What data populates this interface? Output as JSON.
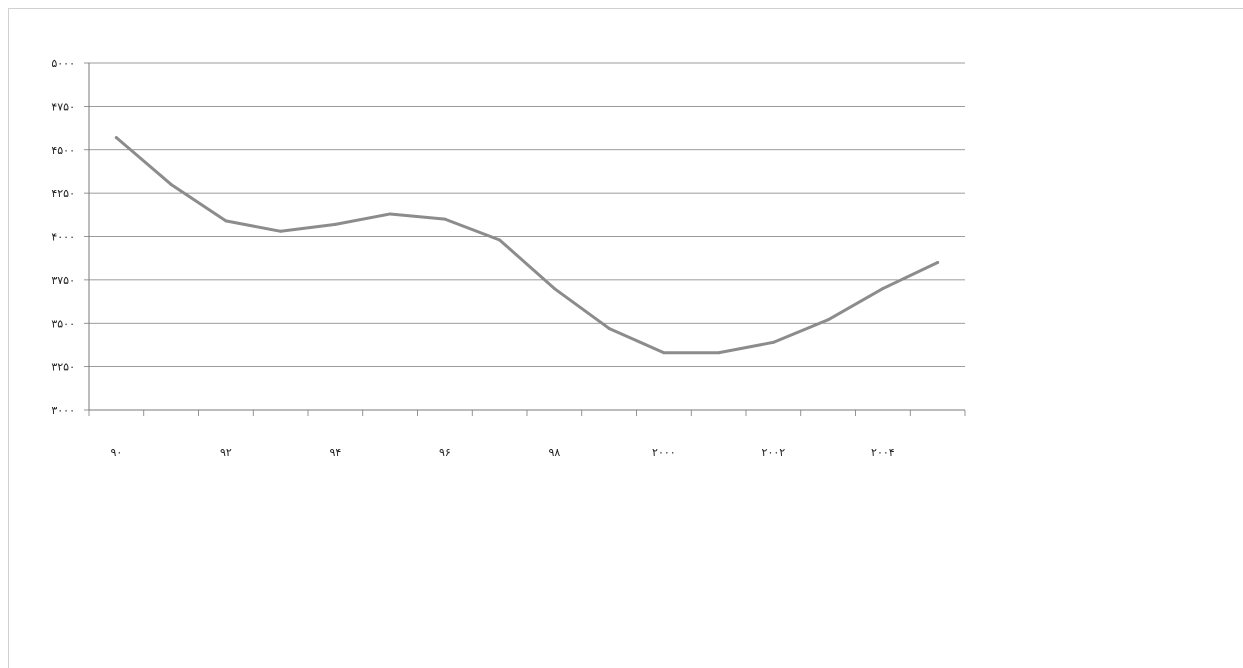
{
  "chart_data": {
    "type": "line",
    "title": "",
    "xlabel": "",
    "ylabel": "",
    "x": [
      1990,
      1991,
      1992,
      1993,
      1994,
      1995,
      1996,
      1997,
      1998,
      1999,
      2000,
      2001,
      2002,
      2003,
      2004,
      2005
    ],
    "series": [
      {
        "values": [
          4570,
          4300,
          4090,
          4030,
          4070,
          4130,
          4100,
          3980,
          3700,
          3470,
          3330,
          3330,
          3390,
          3520,
          3700,
          3850
        ],
        "color": "#8c8c8c"
      }
    ],
    "xlim": [
      1989.5,
      2005.5
    ],
    "ylim": [
      3000,
      5000
    ],
    "y_ticks": [
      3000,
      3250,
      3500,
      3750,
      4000,
      4250,
      4500,
      4750,
      5000
    ],
    "y_tick_labels": [
      "۳۰۰۰",
      "۳۲۵۰",
      "۳۵۰۰",
      "۳۷۵۰",
      "۴۰۰۰",
      "۴۲۵۰",
      "۴۵۰۰",
      "۴۷۵۰",
      "۵۰۰۰"
    ],
    "x_tick_positions": [
      1990,
      1992,
      1994,
      1996,
      1998,
      2000,
      2002,
      2004
    ],
    "x_tick_labels": [
      "۹۰",
      "۹۲",
      "۹۴",
      "۹۶",
      "۹۸",
      "۲۰۰۰",
      "۲۰۰۲",
      "۲۰۰۴"
    ],
    "grid": true,
    "legend": "none"
  }
}
